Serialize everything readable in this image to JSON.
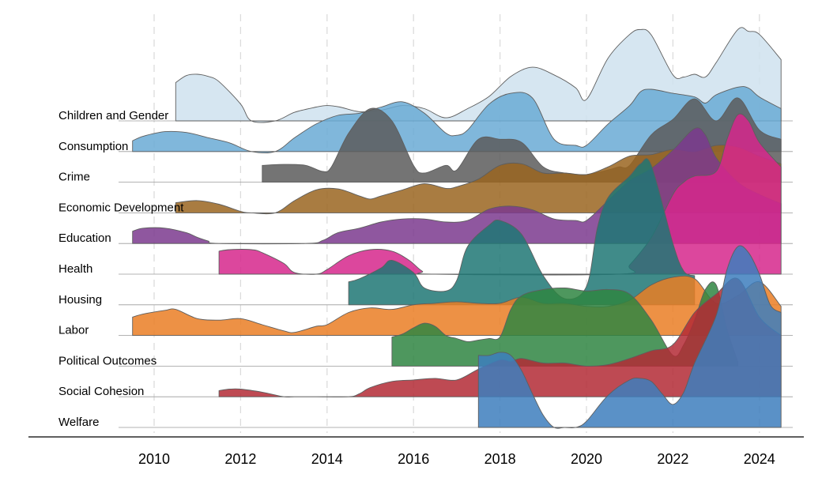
{
  "chart_data": {
    "type": "ridgeline",
    "title": "",
    "xlabel": "",
    "ylabel": "",
    "xlim": [
      2009.5,
      2024.5
    ],
    "x_ticks": [
      2010,
      2012,
      2014,
      2016,
      2018,
      2020,
      2022,
      2024
    ],
    "grid": "dashed vertical lines at each x tick",
    "value_scale_note": "values are relative ridge heights in units of one row spacing",
    "series": [
      {
        "name": "Children and Gender",
        "color": "#cfe2ef",
        "x": [
          2010.5,
          2010.75,
          2011.0,
          2011.25,
          2011.5,
          2012.0,
          2012.25,
          2012.8,
          2013.25,
          2013.75,
          2014.0,
          2014.3,
          2014.75,
          2015.25,
          2015.75,
          2016.25,
          2016.75,
          2017.25,
          2017.75,
          2018.25,
          2018.75,
          2019.25,
          2019.75,
          2020.0,
          2020.5,
          2021.0,
          2021.25,
          2021.5,
          2022.0,
          2022.25,
          2022.5,
          2022.75,
          2023.0,
          2023.5,
          2023.75,
          2024.0,
          2024.5
        ],
        "values": [
          1.25,
          1.48,
          1.52,
          1.45,
          1.28,
          0.55,
          0.0,
          0.0,
          0.28,
          0.45,
          0.5,
          0.45,
          0.3,
          0.35,
          0.5,
          0.4,
          0.1,
          0.4,
          0.8,
          1.45,
          1.75,
          1.5,
          1.08,
          0.7,
          2.05,
          2.82,
          2.98,
          2.8,
          1.5,
          1.43,
          1.52,
          1.43,
          1.9,
          2.98,
          2.92,
          2.82,
          2.0
        ]
      },
      {
        "name": "Consumption",
        "color": "#6aaad5",
        "x": [
          2009.5,
          2009.75,
          2010.25,
          2010.75,
          2011.25,
          2011.75,
          2012.25,
          2012.8,
          2013.25,
          2013.75,
          2014.25,
          2014.75,
          2015.25,
          2015.75,
          2016.25,
          2016.75,
          2017.0,
          2017.25,
          2017.75,
          2018.25,
          2018.75,
          2019.25,
          2019.75,
          2020.0,
          2020.5,
          2021.0,
          2021.25,
          2021.5,
          2022.0,
          2022.5,
          2022.75,
          2023.0,
          2023.5,
          2023.75,
          2024.0,
          2024.5
        ],
        "values": [
          0.35,
          0.5,
          0.65,
          0.62,
          0.45,
          0.28,
          0.0,
          0.0,
          0.45,
          0.9,
          1.18,
          1.25,
          1.45,
          1.62,
          1.25,
          0.6,
          0.53,
          0.7,
          1.55,
          1.9,
          1.75,
          0.4,
          0.2,
          0.2,
          0.9,
          1.5,
          1.95,
          2.03,
          1.9,
          1.78,
          1.58,
          1.85,
          2.1,
          2.07,
          1.78,
          1.4
        ]
      },
      {
        "name": "Crime",
        "color": "#5c5c5c",
        "x": [
          2012.5,
          2013.0,
          2013.5,
          2013.9,
          2014.1,
          2014.5,
          2015.0,
          2015.5,
          2016.0,
          2016.25,
          2016.75,
          2017.0,
          2017.5,
          2018.0,
          2018.5,
          2019.0,
          2019.5,
          2020.0,
          2020.5,
          2020.75,
          2021.0,
          2021.5,
          2022.0,
          2022.5,
          2023.0,
          2023.5,
          2024.0,
          2024.5
        ],
        "values": [
          0.55,
          0.58,
          0.55,
          0.35,
          0.5,
          1.6,
          2.4,
          2.0,
          0.55,
          0.3,
          0.55,
          0.4,
          1.4,
          1.4,
          1.3,
          0.5,
          0.3,
          0.25,
          0.4,
          0.5,
          0.55,
          1.55,
          2.05,
          2.72,
          2.0,
          2.75,
          1.7,
          1.4
        ]
      },
      {
        "name": "Economic Development",
        "color": "#9a6520",
        "x": [
          2010.5,
          2011.0,
          2011.5,
          2012.0,
          2012.25,
          2012.8,
          2013.25,
          2013.75,
          2014.25,
          2014.75,
          2015.0,
          2015.25,
          2015.75,
          2016.25,
          2016.75,
          2017.0,
          2017.5,
          2018.0,
          2018.5,
          2019.0,
          2019.5,
          2020.0,
          2020.5,
          2021.0,
          2021.5,
          2022.0,
          2022.5,
          2023.0,
          2023.5,
          2024.0,
          2024.5
        ],
        "values": [
          0.33,
          0.4,
          0.28,
          0.05,
          0.0,
          0.0,
          0.4,
          0.75,
          0.78,
          0.55,
          0.45,
          0.55,
          0.75,
          0.95,
          0.8,
          0.85,
          1.1,
          1.55,
          1.6,
          1.3,
          1.3,
          1.25,
          1.5,
          1.85,
          1.9,
          2.07,
          2.0,
          2.2,
          2.15,
          1.85,
          1.6
        ]
      },
      {
        "name": "Education",
        "color": "#7b3a8e",
        "x": [
          2009.5,
          2009.75,
          2010.25,
          2010.75,
          2011.0,
          2011.25,
          2011.5,
          2013.5,
          2013.9,
          2014.25,
          2014.75,
          2015.25,
          2015.75,
          2016.25,
          2016.75,
          2017.25,
          2017.75,
          2018.25,
          2018.75,
          2019.25,
          2019.75,
          2020.0,
          2020.5,
          2021.0,
          2021.5,
          2022.0,
          2022.5,
          2022.75,
          2023.0,
          2023.5,
          2024.0,
          2024.5
        ],
        "values": [
          0.4,
          0.5,
          0.5,
          0.35,
          0.2,
          0.08,
          0.0,
          0.0,
          0.1,
          0.35,
          0.5,
          0.7,
          0.8,
          0.8,
          0.7,
          0.75,
          1.12,
          1.22,
          1.1,
          0.8,
          0.75,
          0.75,
          1.4,
          2.05,
          2.45,
          3.05,
          3.75,
          3.55,
          2.8,
          2.0,
          1.6,
          1.3
        ]
      },
      {
        "name": "Health",
        "color": "#d6278c",
        "x": [
          2011.5,
          2011.75,
          2012.25,
          2012.5,
          2013.0,
          2013.25,
          2013.75,
          2014.0,
          2014.5,
          2015.0,
          2015.5,
          2015.9,
          2016.2,
          2016.5,
          2020.75,
          2021.0,
          2021.5,
          2022.0,
          2022.25,
          2022.5,
          2023.0,
          2023.25,
          2023.5,
          2023.75,
          2024.0,
          2024.5
        ],
        "values": [
          0.75,
          0.8,
          0.8,
          0.7,
          0.35,
          0.05,
          0.0,
          0.15,
          0.6,
          0.8,
          0.75,
          0.45,
          0.1,
          0.0,
          0.0,
          0.3,
          1.2,
          2.6,
          3.0,
          3.2,
          3.35,
          4.4,
          5.2,
          5.0,
          4.3,
          3.5
        ]
      },
      {
        "name": "Housing",
        "color": "#1f7774",
        "x": [
          2014.5,
          2014.75,
          2015.25,
          2015.5,
          2016.0,
          2016.25,
          2016.75,
          2017.0,
          2017.25,
          2017.75,
          2018.0,
          2018.5,
          2019.0,
          2019.5,
          2020.0,
          2020.25,
          2020.5,
          2021.0,
          2021.25,
          2021.5,
          2022.0,
          2022.25,
          2022.5
        ],
        "values": [
          0.75,
          0.85,
          1.2,
          1.45,
          1.05,
          0.55,
          0.45,
          0.8,
          1.9,
          2.6,
          2.75,
          2.3,
          0.95,
          0.2,
          0.6,
          2.5,
          3.5,
          4.2,
          4.6,
          4.55,
          2.0,
          1.1,
          0.95
        ]
      },
      {
        "name": "Labor",
        "color": "#ea7e25",
        "x": [
          2009.5,
          2009.75,
          2010.25,
          2010.5,
          2011.0,
          2011.5,
          2012.0,
          2012.5,
          2013.0,
          2013.25,
          2013.75,
          2014.0,
          2014.5,
          2015.0,
          2015.5,
          2016.0,
          2016.5,
          2017.0,
          2017.5,
          2018.0,
          2018.5,
          2019.0,
          2019.5,
          2020.0,
          2020.5,
          2021.0,
          2021.5,
          2022.0,
          2022.5,
          2023.0,
          2023.5,
          2024.0,
          2024.5
        ],
        "values": [
          0.6,
          0.7,
          0.82,
          0.85,
          0.55,
          0.5,
          0.55,
          0.35,
          0.15,
          0.1,
          0.3,
          0.35,
          0.75,
          0.9,
          0.85,
          1.0,
          1.05,
          1.1,
          1.05,
          1.05,
          1.25,
          1.05,
          1.05,
          0.95,
          0.95,
          1.15,
          1.65,
          1.9,
          1.85,
          1.05,
          1.3,
          1.75,
          0.95
        ]
      },
      {
        "name": "Political Outcomes",
        "color": "#2f8542",
        "x": [
          2015.5,
          2015.75,
          2016.0,
          2016.25,
          2016.5,
          2016.75,
          2017.0,
          2017.25,
          2017.5,
          2017.75,
          2018.0,
          2018.25,
          2018.5,
          2019.0,
          2019.5,
          2020.0,
          2020.5,
          2021.0,
          2021.5,
          2022.0,
          2022.25,
          2022.5,
          2022.75,
          2023.0,
          2023.25,
          2023.5
        ],
        "values": [
          0.95,
          1.05,
          1.25,
          1.4,
          1.3,
          1.0,
          0.9,
          0.8,
          0.85,
          0.9,
          0.95,
          1.85,
          2.3,
          2.5,
          2.55,
          2.45,
          2.5,
          2.35,
          1.5,
          0.35,
          0.7,
          1.5,
          2.5,
          2.65,
          1.2,
          0.15
        ]
      },
      {
        "name": "Social Cohesion",
        "color": "#b32a35",
        "x": [
          2011.5,
          2011.75,
          2012.0,
          2012.5,
          2013.0,
          2013.25,
          2013.75,
          2014.5,
          2014.75,
          2015.0,
          2015.5,
          2016.0,
          2016.5,
          2017.0,
          2017.5,
          2018.0,
          2018.25,
          2018.5,
          2019.0,
          2019.5,
          2020.0,
          2020.5,
          2021.0,
          2021.5,
          2022.0,
          2022.5,
          2023.0,
          2023.5,
          2024.0,
          2024.5
        ],
        "values": [
          0.2,
          0.25,
          0.25,
          0.15,
          0.0,
          0.0,
          0.0,
          0.0,
          0.1,
          0.3,
          0.5,
          0.55,
          0.6,
          0.55,
          0.9,
          1.2,
          1.15,
          1.25,
          1.1,
          1.1,
          1.0,
          1.05,
          1.25,
          1.5,
          1.7,
          2.75,
          3.35,
          3.85,
          2.6,
          2.0
        ]
      },
      {
        "name": "Welfare",
        "color": "#3d7ebd",
        "x": [
          2017.5,
          2017.75,
          2018.0,
          2018.25,
          2018.5,
          2018.75,
          2019.0,
          2019.25,
          2019.5,
          2019.75,
          2020.0,
          2020.5,
          2021.0,
          2021.25,
          2021.5,
          2021.75,
          2022.0,
          2022.25,
          2022.5,
          2023.0,
          2023.25,
          2023.5,
          2023.75,
          2024.0,
          2024.25,
          2024.5
        ],
        "values": [
          2.35,
          2.35,
          2.45,
          2.35,
          1.85,
          1.1,
          0.4,
          0.0,
          0.0,
          0.0,
          0.2,
          1.05,
          1.55,
          1.6,
          1.5,
          1.1,
          0.75,
          1.15,
          2.1,
          3.65,
          5.15,
          5.9,
          5.7,
          5.0,
          4.0,
          3.75
        ]
      }
    ]
  }
}
